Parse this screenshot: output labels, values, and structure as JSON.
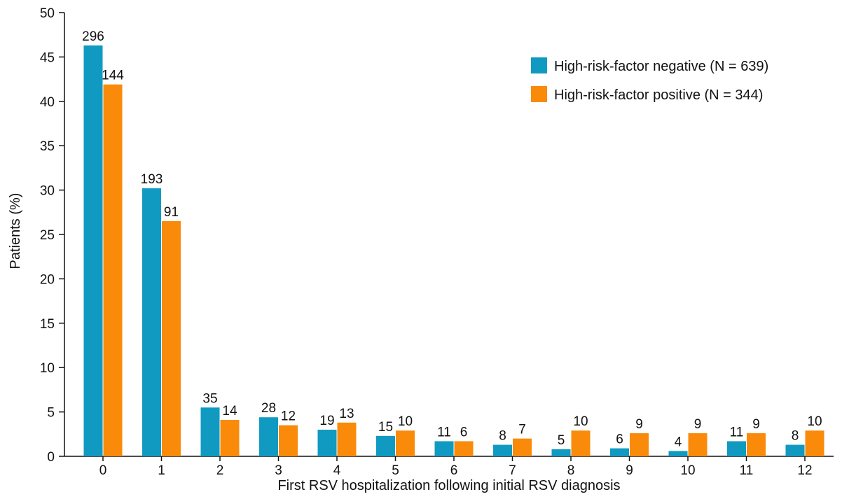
{
  "chart_data": {
    "type": "bar",
    "title": "",
    "xlabel": "First RSV hospitalization following initial RSV diagnosis",
    "ylabel": "Patients (%)",
    "ylim": [
      0,
      50
    ],
    "yticks": [
      0,
      5,
      10,
      15,
      20,
      25,
      30,
      35,
      40,
      45,
      50
    ],
    "grid": false,
    "legend_position": "top-right",
    "categories": [
      "0",
      "1",
      "2",
      "3",
      "4",
      "5",
      "6",
      "7",
      "8",
      "9",
      "10",
      "11",
      "12"
    ],
    "series": [
      {
        "name": "High-risk-factor negative (N = 639)",
        "color": "#109ac1",
        "values": [
          46.3,
          30.2,
          5.5,
          4.4,
          3.0,
          2.3,
          1.7,
          1.3,
          0.8,
          0.9,
          0.6,
          1.7,
          1.3
        ],
        "labels": [
          "296",
          "193",
          "35",
          "28",
          "19",
          "15",
          "11",
          "8",
          "5",
          "6",
          "4",
          "11",
          "8"
        ]
      },
      {
        "name": "High-risk-factor positive (N = 344)",
        "color": "#f98a0a",
        "values": [
          41.9,
          26.5,
          4.1,
          3.5,
          3.8,
          2.9,
          1.7,
          2.0,
          2.9,
          2.6,
          2.6,
          2.6,
          2.9
        ],
        "labels": [
          "144",
          "91",
          "14",
          "12",
          "13",
          "10",
          "6",
          "7",
          "10",
          "9",
          "9",
          "9",
          "10"
        ]
      }
    ]
  }
}
